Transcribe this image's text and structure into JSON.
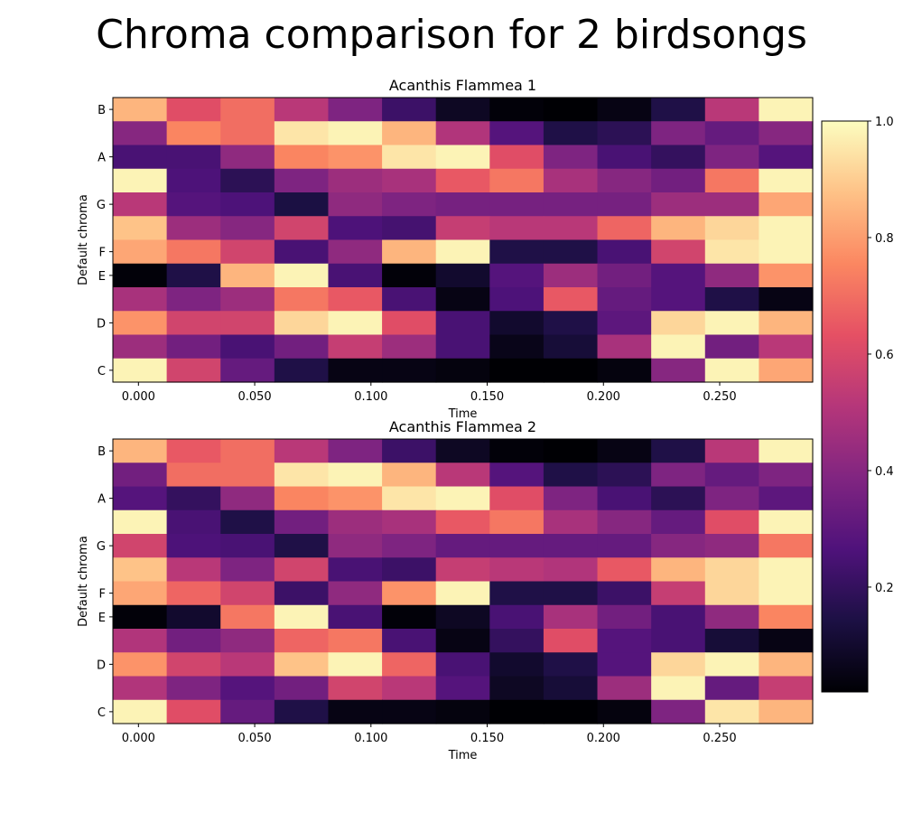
{
  "figure_title": "Chroma comparison for 2 birdsongs",
  "colorbar": {
    "colormap": "magma",
    "range": [
      0.02,
      1.0
    ],
    "ticks": [
      0.2,
      0.4,
      0.6,
      0.8,
      1.0
    ],
    "tick_labels": [
      "0.2",
      "0.4",
      "0.6",
      "0.8",
      "1.0"
    ]
  },
  "chart_data": [
    {
      "type": "heatmap",
      "title": "Acanthis Flammea 1",
      "xlabel": "Time",
      "ylabel": "Default chroma",
      "xlim": [
        -0.011,
        0.29
      ],
      "x_ticks": [
        0.0,
        0.05,
        0.1,
        0.15,
        0.2,
        0.25
      ],
      "x_tick_labels": [
        "0.000",
        "0.050",
        "0.100",
        "0.150",
        "0.200",
        "0.250"
      ],
      "y_tick_labels": [
        "C",
        "D",
        "E",
        "F",
        "G",
        "A",
        "B"
      ],
      "y_tick_rows": [
        0,
        2,
        4,
        5,
        7,
        9,
        11
      ],
      "time_bins": [
        0.0,
        0.023,
        0.046,
        0.07,
        0.093,
        0.116,
        0.139,
        0.163,
        0.186,
        0.209,
        0.232,
        0.255,
        0.279
      ],
      "rows_top_to_bottom": [
        "B",
        "A#",
        "A",
        "G#",
        "G",
        "F#",
        "F",
        "E",
        "D#",
        "D",
        "C#",
        "C"
      ],
      "values": [
        [
          0.85,
          0.62,
          0.7,
          0.52,
          0.38,
          0.22,
          0.08,
          0.03,
          0.02,
          0.05,
          0.15,
          0.52,
          0.98
        ],
        [
          0.4,
          0.75,
          0.7,
          0.95,
          0.98,
          0.85,
          0.5,
          0.28,
          0.15,
          0.18,
          0.38,
          0.32,
          0.4
        ],
        [
          0.25,
          0.25,
          0.42,
          0.75,
          0.78,
          0.95,
          0.98,
          0.62,
          0.38,
          0.25,
          0.2,
          0.38,
          0.28
        ],
        [
          0.98,
          0.26,
          0.18,
          0.38,
          0.45,
          0.48,
          0.65,
          0.72,
          0.48,
          0.4,
          0.35,
          0.72,
          0.98
        ],
        [
          0.52,
          0.28,
          0.26,
          0.14,
          0.42,
          0.38,
          0.36,
          0.36,
          0.36,
          0.36,
          0.45,
          0.45,
          0.82
        ],
        [
          0.88,
          0.45,
          0.4,
          0.58,
          0.26,
          0.24,
          0.55,
          0.52,
          0.52,
          0.68,
          0.85,
          0.92,
          0.98
        ],
        [
          0.82,
          0.72,
          0.58,
          0.25,
          0.42,
          0.85,
          0.98,
          0.15,
          0.15,
          0.25,
          0.58,
          0.95,
          0.98
        ],
        [
          0.03,
          0.15,
          0.85,
          0.98,
          0.25,
          0.03,
          0.1,
          0.28,
          0.45,
          0.35,
          0.28,
          0.42,
          0.78
        ],
        [
          0.48,
          0.38,
          0.45,
          0.72,
          0.65,
          0.25,
          0.05,
          0.26,
          0.65,
          0.32,
          0.28,
          0.15,
          0.05
        ],
        [
          0.78,
          0.58,
          0.58,
          0.92,
          0.98,
          0.62,
          0.25,
          0.1,
          0.15,
          0.3,
          0.92,
          0.98,
          0.85
        ],
        [
          0.45,
          0.35,
          0.25,
          0.35,
          0.55,
          0.45,
          0.25,
          0.06,
          0.12,
          0.48,
          0.98,
          0.35,
          0.52
        ],
        [
          0.98,
          0.58,
          0.32,
          0.15,
          0.05,
          0.05,
          0.04,
          0.02,
          0.02,
          0.04,
          0.4,
          0.98,
          0.82
        ]
      ]
    },
    {
      "type": "heatmap",
      "title": "Acanthis Flammea 2",
      "xlabel": "Time",
      "ylabel": "Default chroma",
      "xlim": [
        -0.011,
        0.29
      ],
      "x_ticks": [
        0.0,
        0.05,
        0.1,
        0.15,
        0.2,
        0.25
      ],
      "x_tick_labels": [
        "0.000",
        "0.050",
        "0.100",
        "0.150",
        "0.200",
        "0.250"
      ],
      "y_tick_labels": [
        "C",
        "D",
        "E",
        "F",
        "G",
        "A",
        "B"
      ],
      "y_tick_rows": [
        0,
        2,
        4,
        5,
        7,
        9,
        11
      ],
      "time_bins": [
        0.0,
        0.023,
        0.046,
        0.07,
        0.093,
        0.116,
        0.139,
        0.163,
        0.186,
        0.209,
        0.232,
        0.255,
        0.279
      ],
      "rows_top_to_bottom": [
        "B",
        "A#",
        "A",
        "G#",
        "G",
        "F#",
        "F",
        "E",
        "D#",
        "D",
        "C#",
        "C"
      ],
      "values": [
        [
          0.85,
          0.65,
          0.7,
          0.52,
          0.38,
          0.22,
          0.08,
          0.03,
          0.02,
          0.05,
          0.15,
          0.52,
          0.98
        ],
        [
          0.35,
          0.7,
          0.7,
          0.95,
          0.98,
          0.85,
          0.52,
          0.28,
          0.15,
          0.18,
          0.38,
          0.32,
          0.38
        ],
        [
          0.28,
          0.2,
          0.42,
          0.75,
          0.78,
          0.95,
          0.98,
          0.62,
          0.38,
          0.25,
          0.18,
          0.38,
          0.3
        ],
        [
          0.98,
          0.25,
          0.15,
          0.35,
          0.45,
          0.48,
          0.65,
          0.72,
          0.48,
          0.4,
          0.32,
          0.62,
          0.98
        ],
        [
          0.58,
          0.26,
          0.25,
          0.15,
          0.42,
          0.38,
          0.32,
          0.32,
          0.32,
          0.32,
          0.4,
          0.42,
          0.72
        ],
        [
          0.88,
          0.52,
          0.38,
          0.58,
          0.25,
          0.22,
          0.55,
          0.52,
          0.5,
          0.65,
          0.85,
          0.92,
          0.98
        ],
        [
          0.82,
          0.68,
          0.58,
          0.22,
          0.42,
          0.78,
          0.98,
          0.15,
          0.15,
          0.22,
          0.55,
          0.92,
          0.98
        ],
        [
          0.03,
          0.1,
          0.72,
          0.98,
          0.25,
          0.03,
          0.08,
          0.25,
          0.48,
          0.35,
          0.25,
          0.42,
          0.75
        ],
        [
          0.5,
          0.35,
          0.42,
          0.68,
          0.72,
          0.25,
          0.05,
          0.2,
          0.62,
          0.28,
          0.25,
          0.12,
          0.05
        ],
        [
          0.78,
          0.58,
          0.52,
          0.88,
          0.98,
          0.68,
          0.25,
          0.1,
          0.15,
          0.28,
          0.92,
          0.98,
          0.85
        ],
        [
          0.5,
          0.38,
          0.28,
          0.35,
          0.58,
          0.52,
          0.28,
          0.08,
          0.12,
          0.45,
          0.98,
          0.32,
          0.55
        ],
        [
          0.98,
          0.62,
          0.32,
          0.15,
          0.05,
          0.05,
          0.04,
          0.02,
          0.02,
          0.04,
          0.38,
          0.95,
          0.85
        ]
      ]
    }
  ]
}
